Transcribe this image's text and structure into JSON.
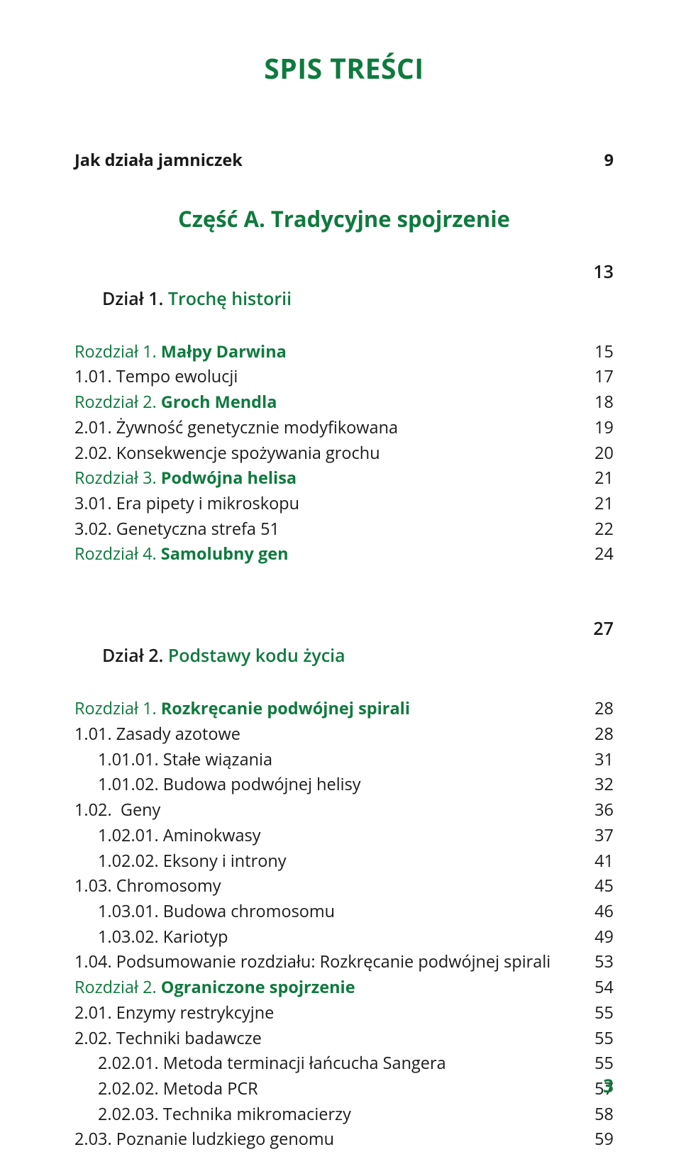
{
  "colors": {
    "green": "#0f7a3e",
    "text": "#1a1a1a",
    "background": "#ffffff"
  },
  "title": "SPIS TREŚCI",
  "pageNumber": "3",
  "intro": {
    "label": "Jak działa jamniczek",
    "page": "9"
  },
  "partA": {
    "heading": "Część A. Tradycyjne spojrzenie"
  },
  "dzial1": {
    "heading": "Dział 1.",
    "headingTitle": " Trochę historii",
    "page": "13",
    "items": [
      {
        "pre": "Rozdział 1. ",
        "title": "Małpy Darwina",
        "page": "15",
        "chapter": true
      },
      {
        "label": "1.01. Tempo ewolucji",
        "page": "17"
      },
      {
        "pre": "Rozdział 2. ",
        "title": "Groch Mendla",
        "page": "18",
        "chapter": true
      },
      {
        "label": "2.01. Żywność genetycznie modyfikowana",
        "page": "19"
      },
      {
        "label": "2.02. Konsekwencje spożywania grochu",
        "page": "20"
      },
      {
        "pre": "Rozdział 3. ",
        "title": "Podwójna helisa",
        "page": "21",
        "chapter": true
      },
      {
        "label": "3.01. Era pipety i mikroskopu",
        "page": "21"
      },
      {
        "label": "3.02. Genetyczna strefa 51",
        "page": "22"
      },
      {
        "pre": "Rozdział 4. ",
        "title": "Samolubny gen",
        "page": "24",
        "chapter": true
      }
    ]
  },
  "dzial2": {
    "heading": "Dział 2.",
    "headingTitle": " Podstawy kodu życia",
    "page": "27",
    "items": [
      {
        "pre": "Rozdział 1. ",
        "title": "Rozkręcanie podwójnej spirali",
        "page": "28",
        "chapter": true
      },
      {
        "label": "1.01. Zasady azotowe",
        "page": "28"
      },
      {
        "label": "1.01.01. Stałe wiązania",
        "page": "31",
        "indent": 1
      },
      {
        "label": "1.01.02. Budowa podwójnej helisy",
        "page": "32",
        "indent": 1
      },
      {
        "label": "1.02.  Geny",
        "page": "36"
      },
      {
        "label": "1.02.01. Aminokwasy",
        "page": "37",
        "indent": 1
      },
      {
        "label": "1.02.02. Eksony i introny",
        "page": "41",
        "indent": 1
      },
      {
        "label": "1.03. Chromosomy",
        "page": "45"
      },
      {
        "label": "1.03.01. Budowa chromosomu",
        "page": "46",
        "indent": 1
      },
      {
        "label": "1.03.02. Kariotyp",
        "page": "49",
        "indent": 1
      },
      {
        "label": "1.04. Podsumowanie rozdziału: Rozkręcanie podwójnej spirali",
        "page": "53"
      },
      {
        "pre": "Rozdział 2. ",
        "title": "Ograniczone spojrzenie",
        "page": "54",
        "chapter": true
      },
      {
        "label": "2.01. Enzymy restrykcyjne",
        "page": "55"
      },
      {
        "label": "2.02. Techniki badawcze",
        "page": "55"
      },
      {
        "label": "2.02.01. Metoda terminacji łańcucha Sangera",
        "page": "55",
        "indent": 1
      },
      {
        "label": "2.02.02. Metoda PCR",
        "page": "57",
        "indent": 1
      },
      {
        "label": "2.02.03. Technika mikromacierzy",
        "page": "58",
        "indent": 1
      },
      {
        "label": "2.03. Poznanie ludzkiego genomu",
        "page": "59"
      }
    ]
  }
}
